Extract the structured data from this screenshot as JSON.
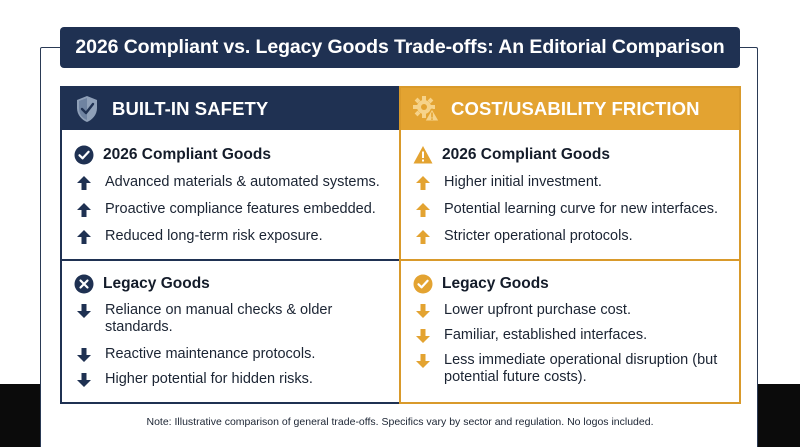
{
  "title": "2026 Compliant vs. Legacy Goods Trade-offs: An Editorial Comparison",
  "colors": {
    "navy": "#1f3152",
    "amber": "#e3a331",
    "amber_dark": "#d99a2b"
  },
  "left_panel": {
    "header": "BUILT-IN SAFETY",
    "header_icon": "shield-check-icon",
    "compliant": {
      "heading": "2026 Compliant Goods",
      "icon": "check-circle-icon",
      "items": [
        "Advanced materials & automated systems.",
        "Proactive compliance features embedded.",
        "Reduced long-term risk exposure."
      ],
      "item_icon": "arrow-up-icon"
    },
    "legacy": {
      "heading": "Legacy Goods",
      "icon": "x-circle-icon",
      "items": [
        "Reliance on manual checks & older standards.",
        "Reactive maintenance protocols.",
        "Higher potential for hidden risks."
      ],
      "item_icon": "arrow-down-icon"
    }
  },
  "right_panel": {
    "header": "COST/USABILITY FRICTION",
    "header_icon": "gear-warning-icon",
    "compliant": {
      "heading": "2026 Compliant Goods",
      "icon": "warning-triangle-icon",
      "items": [
        "Higher initial investment.",
        "Potential learning curve for new interfaces.",
        "Stricter operational protocols."
      ],
      "item_icon": "arrow-up-icon"
    },
    "legacy": {
      "heading": "Legacy Goods",
      "icon": "check-circle-icon",
      "items": [
        "Lower upfront purchase cost.",
        "Familiar, established interfaces.",
        "Less immediate operational disruption (but potential future costs)."
      ],
      "item_icon": "arrow-down-icon"
    }
  },
  "note": "Note: Illustrative comparison of general trade-offs. Specifics vary by sector and regulation. No logos included."
}
